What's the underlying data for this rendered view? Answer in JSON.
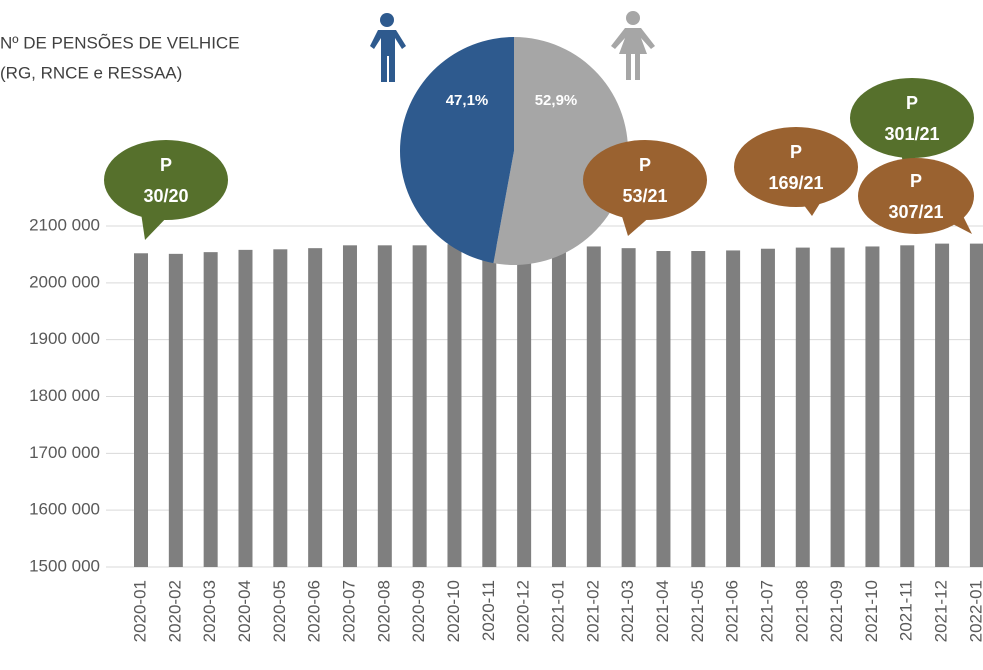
{
  "chart_data": {
    "type": "bar",
    "title": [
      "Nº DE PENSÕES DE VELHICE",
      "(RG, RNCE e RESSAA)"
    ],
    "categories": [
      "2020-01",
      "2020-02",
      "2020-03",
      "2020-04",
      "2020-05",
      "2020-06",
      "2020-07",
      "2020-08",
      "2020-09",
      "2020-10",
      "2020-11",
      "2020-12",
      "2021-01",
      "2021-02",
      "2021-03",
      "2021-04",
      "2021-05",
      "2021-06",
      "2021-07",
      "2021-08",
      "2021-09",
      "2021-10",
      "2021-11",
      "2021-12",
      "2022-01"
    ],
    "values": [
      2052000,
      2051000,
      2054000,
      2058000,
      2059000,
      2061000,
      2066000,
      2066000,
      2066000,
      2068000,
      2069000,
      2070000,
      2069000,
      2064000,
      2061000,
      2056000,
      2056000,
      2057000,
      2060000,
      2062000,
      2062000,
      2064000,
      2066000,
      2069000,
      2069000
    ],
    "color": "#7f7f7f",
    "ylim": [
      1500000,
      2150000
    ],
    "yticks": [
      {
        "value": 1500000,
        "label": "1500 000"
      },
      {
        "value": 1600000,
        "label": "1600 000"
      },
      {
        "value": 1700000,
        "label": "1700 000"
      },
      {
        "value": 1800000,
        "label": "1800 000"
      },
      {
        "value": 1900000,
        "label": "1900 000"
      },
      {
        "value": 2000000,
        "label": "2000 000"
      },
      {
        "value": 2100000,
        "label": "2100 000"
      }
    ],
    "grid": true,
    "inset_pie": {
      "type": "pie",
      "values": [
        52.9,
        47.1
      ],
      "value_labels": [
        "52,9%",
        "47,1%"
      ],
      "colors": [
        "#a6a6a6",
        "#2e5a8e"
      ]
    },
    "annotations": [
      {
        "text": [
          "P",
          "30/20"
        ],
        "color": "#56702c"
      },
      {
        "text": [
          "P",
          "53/21"
        ],
        "color": "#9a6230"
      },
      {
        "text": [
          "P",
          "169/21"
        ],
        "color": "#9a6230"
      },
      {
        "text": [
          "P",
          "301/21"
        ],
        "color": "#56702c"
      },
      {
        "text": [
          "P",
          "307/21"
        ],
        "color": "#9a6230"
      }
    ]
  }
}
